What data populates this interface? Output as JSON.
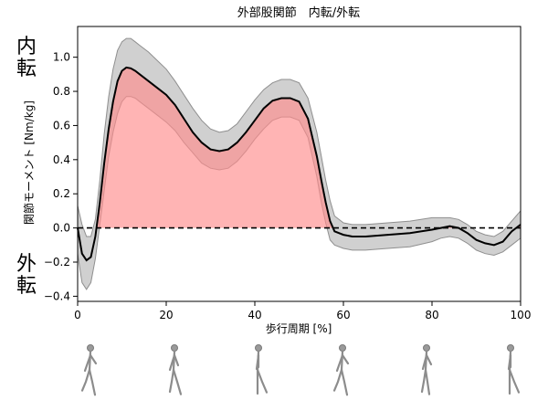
{
  "chart_data": {
    "type": "line",
    "title": "外部股関節　内転/外転",
    "xlabel": "歩行周期 [%]",
    "ylabel": "関節モーメント [Nm/kg]",
    "xlim": [
      0,
      100
    ],
    "ylim": [
      -0.43,
      1.18
    ],
    "xticks": [
      0,
      20,
      40,
      60,
      80,
      100
    ],
    "xtick_labels": [
      "0",
      "20",
      "40",
      "60",
      "80",
      "100"
    ],
    "yticks": [
      -0.4,
      -0.2,
      0.0,
      0.2,
      0.4,
      0.6,
      0.8,
      1.0
    ],
    "ytick_labels": [
      "−0.4",
      "−0.2",
      "0.0",
      "0.2",
      "0.4",
      "0.6",
      "0.8",
      "1.0"
    ],
    "side_labels": {
      "top": [
        "内",
        "転"
      ],
      "bottom": [
        "外",
        "転"
      ]
    },
    "zero_line": "dashed",
    "colors": {
      "band": "#a9a9a9",
      "mean": "#000000",
      "highlight": "#ff8c8c"
    },
    "series": [
      {
        "name": "mean",
        "x": [
          0,
          1,
          2,
          3,
          4,
          5,
          6,
          7,
          8,
          9,
          10,
          11,
          12,
          13,
          14,
          16,
          18,
          20,
          22,
          24,
          26,
          28,
          30,
          32,
          34,
          36,
          38,
          40,
          42,
          44,
          46,
          48,
          50,
          52,
          54,
          55,
          56,
          57,
          58,
          60,
          62,
          65,
          70,
          75,
          80,
          82,
          84,
          86,
          88,
          90,
          92,
          94,
          96,
          98,
          100
        ],
        "values": [
          0.0,
          -0.15,
          -0.19,
          -0.17,
          -0.05,
          0.15,
          0.38,
          0.58,
          0.74,
          0.86,
          0.92,
          0.94,
          0.935,
          0.92,
          0.9,
          0.86,
          0.82,
          0.78,
          0.72,
          0.64,
          0.56,
          0.5,
          0.46,
          0.45,
          0.46,
          0.5,
          0.56,
          0.63,
          0.7,
          0.745,
          0.76,
          0.76,
          0.74,
          0.64,
          0.42,
          0.28,
          0.15,
          0.04,
          -0.02,
          -0.04,
          -0.05,
          -0.05,
          -0.04,
          -0.03,
          -0.01,
          0.0,
          0.01,
          0.0,
          -0.03,
          -0.07,
          -0.09,
          -0.1,
          -0.08,
          -0.02,
          0.02
        ]
      },
      {
        "name": "upper",
        "x": [
          0,
          1,
          2,
          3,
          4,
          5,
          6,
          7,
          8,
          9,
          10,
          11,
          12,
          13,
          14,
          16,
          18,
          20,
          22,
          24,
          26,
          28,
          30,
          32,
          34,
          36,
          38,
          40,
          42,
          44,
          46,
          48,
          50,
          52,
          54,
          55,
          56,
          57,
          58,
          60,
          62,
          65,
          70,
          75,
          80,
          82,
          84,
          86,
          88,
          90,
          92,
          94,
          96,
          98,
          100
        ],
        "values": [
          0.13,
          0.02,
          -0.05,
          -0.05,
          0.05,
          0.28,
          0.55,
          0.77,
          0.93,
          1.04,
          1.09,
          1.11,
          1.11,
          1.09,
          1.07,
          1.03,
          0.98,
          0.93,
          0.86,
          0.78,
          0.7,
          0.63,
          0.58,
          0.56,
          0.57,
          0.61,
          0.68,
          0.75,
          0.81,
          0.85,
          0.87,
          0.87,
          0.85,
          0.76,
          0.56,
          0.42,
          0.28,
          0.16,
          0.07,
          0.03,
          0.02,
          0.02,
          0.03,
          0.04,
          0.06,
          0.06,
          0.06,
          0.05,
          0.02,
          -0.02,
          -0.04,
          -0.05,
          -0.02,
          0.04,
          0.1
        ]
      },
      {
        "name": "lower",
        "x": [
          0,
          1,
          2,
          3,
          4,
          5,
          6,
          7,
          8,
          9,
          10,
          11,
          12,
          13,
          14,
          16,
          18,
          20,
          22,
          24,
          26,
          28,
          30,
          32,
          34,
          36,
          38,
          40,
          42,
          44,
          46,
          48,
          50,
          52,
          54,
          55,
          56,
          57,
          58,
          60,
          62,
          65,
          70,
          75,
          80,
          82,
          84,
          86,
          88,
          90,
          92,
          94,
          96,
          98,
          100
        ],
        "values": [
          -0.15,
          -0.32,
          -0.36,
          -0.32,
          -0.18,
          0.02,
          0.22,
          0.42,
          0.56,
          0.67,
          0.74,
          0.77,
          0.77,
          0.76,
          0.74,
          0.7,
          0.66,
          0.62,
          0.57,
          0.5,
          0.44,
          0.38,
          0.35,
          0.34,
          0.35,
          0.39,
          0.45,
          0.52,
          0.58,
          0.63,
          0.65,
          0.65,
          0.63,
          0.53,
          0.3,
          0.15,
          0.03,
          -0.07,
          -0.1,
          -0.12,
          -0.13,
          -0.13,
          -0.12,
          -0.11,
          -0.08,
          -0.06,
          -0.05,
          -0.06,
          -0.09,
          -0.13,
          -0.15,
          -0.16,
          -0.14,
          -0.1,
          -0.06
        ]
      }
    ],
    "figure_count": 6
  }
}
